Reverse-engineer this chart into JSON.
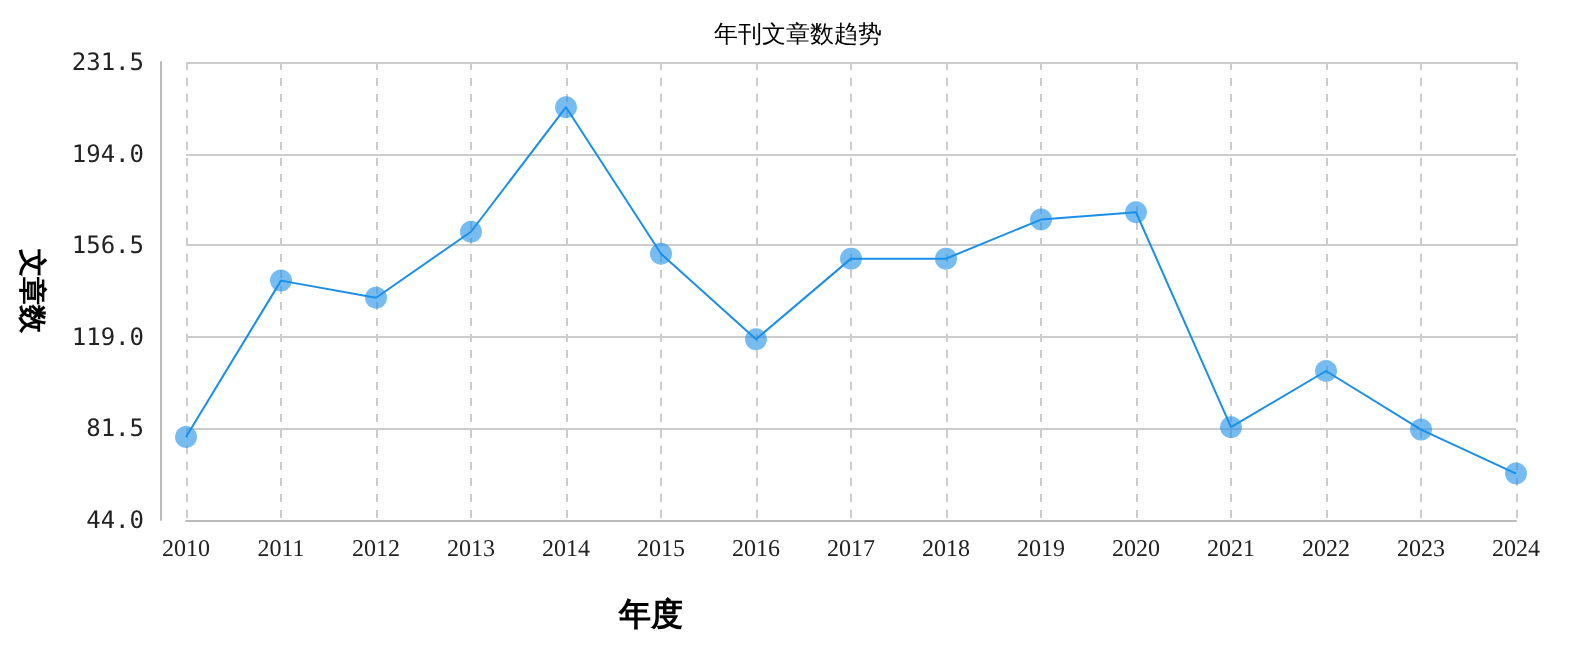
{
  "chart_data": {
    "type": "line",
    "title": "年刊文章数趋势",
    "xlabel": "年度",
    "ylabel": "文章数",
    "categories": [
      "2010",
      "2011",
      "2012",
      "2013",
      "2014",
      "2015",
      "2016",
      "2017",
      "2018",
      "2019",
      "2020",
      "2021",
      "2022",
      "2023",
      "2024"
    ],
    "series": [
      {
        "color": "#1a8fe8",
        "values": [
          78,
          142,
          135,
          162,
          213,
          153,
          118,
          151,
          151,
          167,
          170,
          82,
          105,
          81,
          63
        ]
      }
    ],
    "ylim": [
      44,
      231.5
    ],
    "yticks": [
      {
        "value": 44,
        "label": "44.0"
      },
      {
        "value": 81.5,
        "label": "81.5"
      },
      {
        "value": 119,
        "label": "119.0"
      },
      {
        "value": 156.5,
        "label": "156.5"
      },
      {
        "value": 194,
        "label": "194.0"
      },
      {
        "value": 231.5,
        "label": "231.5"
      }
    ],
    "grid": true,
    "marker": "circle",
    "line_style": "solid"
  }
}
